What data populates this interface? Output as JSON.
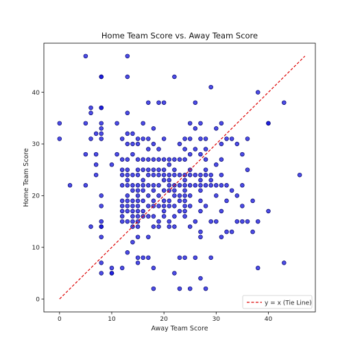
{
  "chart_data": {
    "type": "scatter",
    "title": "Home Team Score vs. Away Team Score",
    "xlabel": "Away Team Score",
    "ylabel": "Home Team Score",
    "xlim": [
      -3,
      49
    ],
    "ylim": [
      -2.5,
      49.5
    ],
    "xticks": [
      0,
      10,
      20,
      30,
      40
    ],
    "yticks": [
      0,
      10,
      20,
      30,
      40
    ],
    "grid": false,
    "legend_position": "lower-right",
    "point_color": "#1010dd",
    "point_edge_color": "#000066",
    "series": [
      {
        "x": [
          0,
          0,
          2,
          5,
          5,
          5,
          5,
          6,
          6,
          6,
          6,
          7,
          7,
          7,
          7,
          8,
          8,
          8,
          8,
          8,
          8,
          8,
          8,
          8,
          8,
          8,
          8,
          8,
          8,
          8,
          8,
          10,
          10,
          10,
          10,
          11,
          11,
          12,
          12,
          12,
          12,
          12,
          12,
          12,
          12,
          12,
          12,
          12,
          13,
          13,
          13,
          13,
          13,
          13,
          13,
          13,
          13,
          13,
          13,
          13,
          13,
          13,
          13,
          13,
          14,
          14,
          14,
          14,
          14,
          14,
          14,
          14,
          14,
          14,
          14,
          14,
          14,
          15,
          15,
          15,
          15,
          15,
          15,
          15,
          15,
          15,
          15,
          15,
          15,
          15,
          15,
          15,
          15,
          15,
          16,
          16,
          16,
          16,
          16,
          16,
          16,
          16,
          16,
          16,
          16,
          17,
          17,
          17,
          17,
          17,
          17,
          17,
          17,
          17,
          17,
          17,
          17,
          18,
          18,
          18,
          18,
          18,
          18,
          18,
          18,
          18,
          18,
          18,
          18,
          18,
          19,
          19,
          19,
          19,
          19,
          19,
          19,
          19,
          19,
          19,
          20,
          20,
          20,
          20,
          20,
          20,
          20,
          20,
          20,
          20,
          20,
          21,
          21,
          21,
          21,
          21,
          21,
          21,
          21,
          21,
          21,
          22,
          22,
          22,
          22,
          22,
          22,
          22,
          22,
          22,
          22,
          22,
          23,
          23,
          23,
          23,
          23,
          23,
          23,
          23,
          23,
          24,
          24,
          24,
          24,
          24,
          24,
          24,
          24,
          24,
          24,
          24,
          24,
          24,
          25,
          25,
          25,
          25,
          25,
          25,
          25,
          25,
          25,
          25,
          26,
          26,
          26,
          26,
          26,
          26,
          26,
          27,
          27,
          27,
          27,
          27,
          27,
          27,
          27,
          27,
          27,
          27,
          27,
          28,
          28,
          28,
          28,
          28,
          28,
          28,
          28,
          29,
          29,
          29,
          29,
          29,
          29,
          30,
          30,
          30,
          30,
          30,
          31,
          31,
          31,
          31,
          31,
          31,
          31,
          32,
          32,
          32,
          32,
          33,
          33,
          33,
          34,
          34,
          34,
          35,
          35,
          35,
          35,
          36,
          36,
          36,
          37,
          37,
          38,
          38,
          38,
          40,
          40,
          40,
          43,
          43,
          46
        ],
        "y": [
          34,
          31,
          22,
          47,
          34,
          28,
          22,
          14,
          37,
          36,
          31,
          32,
          28,
          26,
          24,
          12,
          43,
          43,
          37,
          37,
          34,
          33,
          32,
          31,
          20,
          18,
          15,
          14,
          14,
          7,
          5,
          26,
          5,
          6,
          5,
          34,
          28,
          31,
          27,
          25,
          24,
          22,
          19,
          18,
          17,
          16,
          15,
          6,
          47,
          43,
          36,
          32,
          30,
          27,
          25,
          24,
          23,
          22,
          20,
          19,
          18,
          17,
          15,
          9,
          32,
          30,
          28,
          24,
          22,
          21,
          19,
          18,
          17,
          16,
          15,
          14,
          11,
          31,
          30,
          27,
          25,
          24,
          22,
          21,
          20,
          19,
          18,
          17,
          16,
          15,
          14,
          12,
          8,
          7,
          34,
          31,
          27,
          25,
          23,
          22,
          21,
          19,
          17,
          16,
          8,
          38,
          31,
          29,
          27,
          25,
          24,
          22,
          20,
          18,
          16,
          12,
          8,
          33,
          30,
          27,
          25,
          24,
          22,
          21,
          19,
          18,
          16,
          14,
          6,
          2,
          38,
          29,
          27,
          25,
          24,
          22,
          20,
          18,
          15,
          14,
          38,
          31,
          27,
          25,
          24,
          23,
          21,
          19,
          18,
          17,
          16,
          27,
          26,
          24,
          23,
          22,
          21,
          19,
          18,
          15,
          14,
          43,
          27,
          25,
          24,
          22,
          21,
          20,
          18,
          16,
          14,
          5,
          30,
          27,
          24,
          22,
          20,
          19,
          17,
          8,
          2,
          31,
          29,
          27,
          24,
          23,
          22,
          21,
          20,
          19,
          18,
          17,
          16,
          8,
          34,
          31,
          28,
          25,
          24,
          22,
          20,
          18,
          14,
          2,
          38,
          33,
          29,
          24,
          22,
          15,
          8,
          34,
          31,
          28,
          24,
          23,
          22,
          21,
          19,
          17,
          13,
          12,
          4,
          31,
          29,
          27,
          25,
          24,
          22,
          18,
          2,
          41,
          24,
          23,
          22,
          15,
          8,
          33,
          26,
          22,
          20,
          15,
          34,
          30,
          27,
          24,
          22,
          17,
          12,
          31,
          22,
          19,
          13,
          31,
          21,
          13,
          30,
          20,
          15,
          28,
          22,
          18,
          15,
          31,
          25,
          15,
          19,
          13,
          40,
          15,
          6,
          34,
          34,
          17,
          38,
          7,
          24
        ]
      }
    ],
    "reference_line": {
      "label": "y = x (Tie Line)",
      "color": "#dd0000",
      "x": [
        0,
        47
      ],
      "y": [
        0,
        47
      ]
    }
  }
}
